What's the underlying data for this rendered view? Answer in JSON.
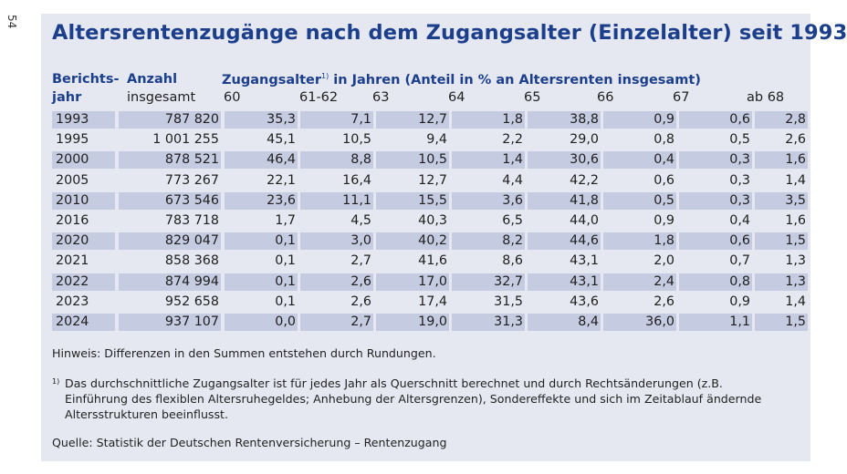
{
  "page_number": "54",
  "title": "Altersrentenzugänge nach dem Zugangsalter (Einzelalter) seit 1993",
  "header": {
    "col1_line1": "Berichts-",
    "col1_line2": "jahr",
    "col2_line1": "Anzahl",
    "col2_line2": "insgesamt",
    "group_label": "Zugangsalter",
    "group_sup": "1)",
    "group_suffix": " in Jahren (Anteil in % an Altersrenten insgesamt)",
    "ages": [
      "60",
      "61-62",
      "63",
      "64",
      "65",
      "66",
      "67",
      "ab 68"
    ]
  },
  "rows": [
    {
      "year": "1993",
      "count": "787 820",
      "v": [
        "35,3",
        "7,1",
        "12,7",
        "1,8",
        "38,8",
        "0,9",
        "0,6",
        "2,8"
      ]
    },
    {
      "year": "1995",
      "count": "1 001 255",
      "v": [
        "45,1",
        "10,5",
        "9,4",
        "2,2",
        "29,0",
        "0,8",
        "0,5",
        "2,6"
      ]
    },
    {
      "year": "2000",
      "count": "878 521",
      "v": [
        "46,4",
        "8,8",
        "10,5",
        "1,4",
        "30,6",
        "0,4",
        "0,3",
        "1,6"
      ]
    },
    {
      "year": "2005",
      "count": "773 267",
      "v": [
        "22,1",
        "16,4",
        "12,7",
        "4,4",
        "42,2",
        "0,6",
        "0,3",
        "1,4"
      ]
    },
    {
      "year": "2010",
      "count": "673 546",
      "v": [
        "23,6",
        "11,1",
        "15,5",
        "3,6",
        "41,8",
        "0,5",
        "0,3",
        "3,5"
      ]
    },
    {
      "year": "2016",
      "count": "783 718",
      "v": [
        "1,7",
        "4,5",
        "40,3",
        "6,5",
        "44,0",
        "0,9",
        "0,4",
        "1,6"
      ]
    },
    {
      "year": "2020",
      "count": "829 047",
      "v": [
        "0,1",
        "3,0",
        "40,2",
        "8,2",
        "44,6",
        "1,8",
        "0,6",
        "1,5"
      ]
    },
    {
      "year": "2021",
      "count": "858 368",
      "v": [
        "0,1",
        "2,7",
        "41,6",
        "8,6",
        "43,1",
        "2,0",
        "0,7",
        "1,3"
      ]
    },
    {
      "year": "2022",
      "count": "874 994",
      "v": [
        "0,1",
        "2,6",
        "17,0",
        "32,7",
        "43,1",
        "2,4",
        "0,8",
        "1,3"
      ]
    },
    {
      "year": "2023",
      "count": "952 658",
      "v": [
        "0,1",
        "2,6",
        "17,4",
        "31,5",
        "43,6",
        "2,6",
        "0,9",
        "1,4"
      ]
    },
    {
      "year": "2024",
      "count": "937 107",
      "v": [
        "0,0",
        "2,7",
        "19,0",
        "31,3",
        "8,4",
        "36,0",
        "1,1",
        "1,5"
      ]
    }
  ],
  "notes": {
    "hint": "Hinweis: Differenzen in den Summen entstehen durch Rundungen.",
    "footnote_marker": "1)",
    "footnote_text": "Das durchschnittliche Zugangsalter ist für jedes Jahr als Querschnitt berechnet und durch Rechtsänderungen (z.B. Einführung des flexiblen Altersruhegeldes; Anhebung der Altersgrenzen), Sondereffekte und sich im Zeitablauf ändernde Altersstrukturen beeinflusst.",
    "source": "Quelle: Statistik der Deutschen Rentenversicherung – Rentenzugang"
  }
}
